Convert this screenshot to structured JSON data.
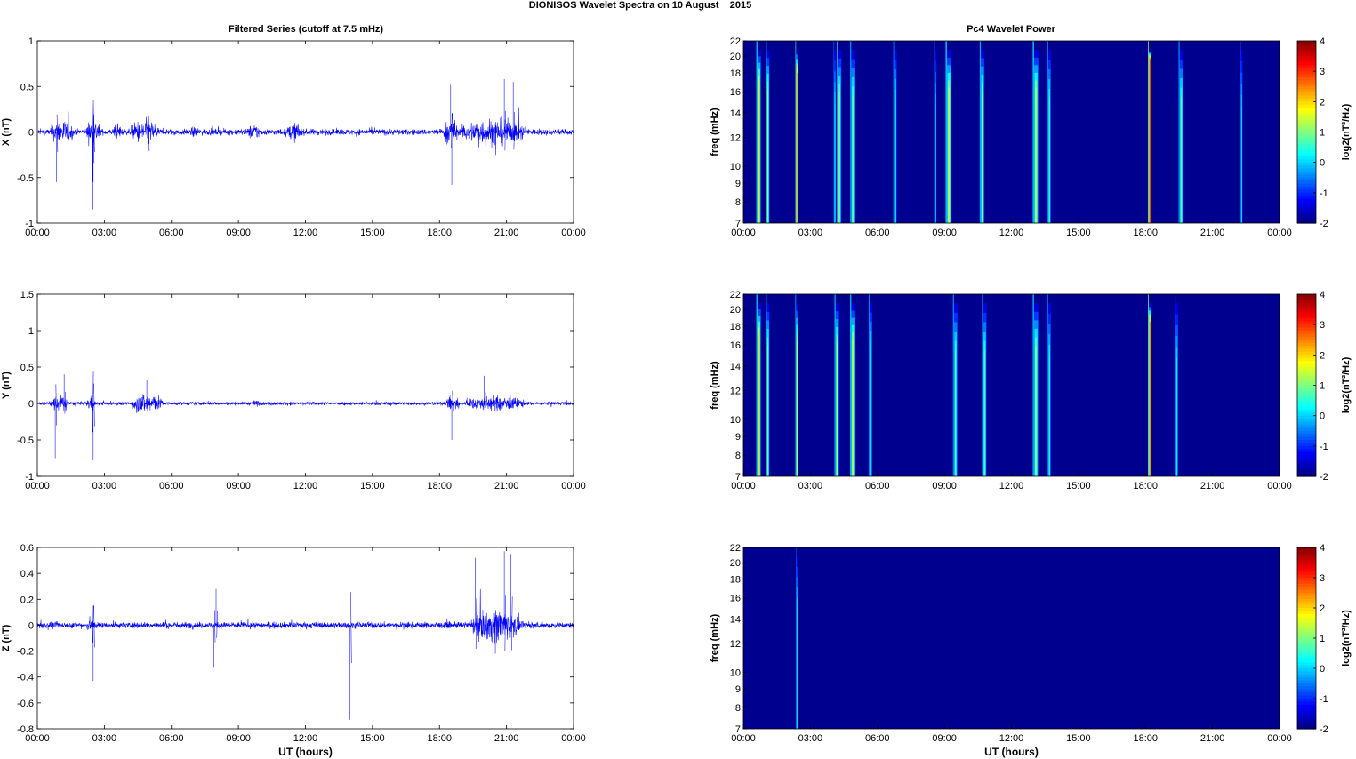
{
  "figure_title": "DIONISOS Wavelet Spectra on 10 August    2015",
  "left_column_title": "Filtered Series (cutoff at 7.5 mHz)",
  "right_column_title": "Pc4 Wavelet Power",
  "x_axis_label": "UT (hours)",
  "colors": {
    "trace": "#0000ff",
    "background": "#ffffff",
    "spectrogram_floor": "#00008f"
  },
  "chart_data": [
    {
      "type": "line",
      "title": "Filtered Series (cutoff at 7.5 mHz)",
      "ylabel": "X (nT)",
      "xlabel": "",
      "x_ticks": [
        "00:00",
        "03:00",
        "06:00",
        "09:00",
        "12:00",
        "15:00",
        "18:00",
        "21:00",
        "00:00"
      ],
      "xlim_hours": [
        0,
        24
      ],
      "ylim": [
        -1,
        1
      ],
      "y_ticks": [
        "1",
        "0.5",
        "0",
        "-0.5",
        "-1"
      ],
      "y_tick_values": [
        1,
        0.5,
        0,
        -0.5,
        -1
      ],
      "series": [
        {
          "baseline_amplitude_nT": 0.07,
          "activity_hours": [
            [
              0.6,
              1.6,
              0.28
            ],
            [
              2.2,
              2.8,
              0.3
            ],
            [
              3.4,
              3.8,
              0.18
            ],
            [
              4.2,
              5.4,
              0.3
            ],
            [
              6.8,
              7.3,
              0.12
            ],
            [
              9.4,
              10.0,
              0.18
            ],
            [
              11.2,
              11.8,
              0.22
            ],
            [
              18.2,
              18.8,
              0.32
            ],
            [
              19.0,
              21.8,
              0.32
            ]
          ],
          "spikes": [
            [
              2.45,
              0.88
            ],
            [
              2.48,
              -0.85
            ],
            [
              2.5,
              -0.55
            ],
            [
              0.85,
              -0.55
            ],
            [
              4.95,
              -0.52
            ],
            [
              18.5,
              0.52
            ],
            [
              18.55,
              -0.58
            ],
            [
              20.9,
              0.58
            ],
            [
              21.3,
              0.55
            ]
          ]
        }
      ]
    },
    {
      "type": "line",
      "title": "",
      "ylabel": "Y (nT)",
      "xlabel": "",
      "x_ticks": [
        "00:00",
        "03:00",
        "06:00",
        "09:00",
        "12:00",
        "15:00",
        "18:00",
        "21:00",
        "00:00"
      ],
      "xlim_hours": [
        0,
        24
      ],
      "ylim": [
        -1,
        1.5
      ],
      "y_ticks": [
        "1.5",
        "1",
        "0.5",
        "0",
        "-0.5",
        "-1"
      ],
      "y_tick_values": [
        1.5,
        1,
        0.5,
        0,
        -0.5,
        -1
      ],
      "series": [
        {
          "baseline_amplitude_nT": 0.05,
          "activity_hours": [
            [
              0.6,
              1.4,
              0.25
            ],
            [
              2.2,
              2.6,
              0.2
            ],
            [
              4.2,
              5.6,
              0.3
            ],
            [
              9.6,
              10.0,
              0.1
            ],
            [
              18.3,
              18.9,
              0.25
            ],
            [
              19.2,
              21.8,
              0.22
            ]
          ],
          "spikes": [
            [
              2.45,
              1.12
            ],
            [
              2.5,
              -0.78
            ],
            [
              0.8,
              -0.75
            ],
            [
              1.2,
              0.4
            ],
            [
              18.55,
              -0.5
            ],
            [
              4.9,
              0.32
            ],
            [
              20.0,
              0.38
            ]
          ]
        }
      ]
    },
    {
      "type": "line",
      "title": "",
      "ylabel": "Z (nT)",
      "xlabel": "UT (hours)",
      "x_ticks": [
        "00:00",
        "03:00",
        "06:00",
        "09:00",
        "12:00",
        "15:00",
        "18:00",
        "21:00",
        "00:00"
      ],
      "xlim_hours": [
        0,
        24
      ],
      "ylim": [
        -0.8,
        0.6
      ],
      "y_ticks": [
        "0.6",
        "0.4",
        "0.2",
        "0",
        "-0.2",
        "-0.4",
        "-0.6",
        "-0.8"
      ],
      "y_tick_values": [
        0.6,
        0.4,
        0.2,
        0,
        -0.2,
        -0.4,
        -0.6,
        -0.8
      ],
      "series": [
        {
          "baseline_amplitude_nT": 0.05,
          "activity_hours": [
            [
              2.2,
              2.6,
              0.12
            ],
            [
              19.5,
              21.6,
              0.28
            ]
          ],
          "spikes": [
            [
              2.45,
              0.38
            ],
            [
              2.5,
              -0.43
            ],
            [
              7.9,
              -0.33
            ],
            [
              8.0,
              0.28
            ],
            [
              14.0,
              -0.73
            ],
            [
              20.9,
              0.57
            ],
            [
              21.2,
              0.55
            ],
            [
              19.6,
              0.52
            ],
            [
              20.5,
              -0.22
            ]
          ]
        }
      ]
    },
    {
      "type": "heatmap",
      "title": "Pc4 Wavelet Power",
      "ylabel": "freq (mHz)",
      "xlabel": "",
      "x_ticks": [
        "00:00",
        "03:00",
        "06:00",
        "09:00",
        "12:00",
        "15:00",
        "18:00",
        "21:00",
        "00:00"
      ],
      "xlim_hours": [
        0,
        24
      ],
      "ylim_mHz": [
        7,
        22
      ],
      "y_ticks": [
        "22",
        "20",
        "18",
        "16",
        "14",
        "12",
        "10",
        "9",
        "8",
        "7"
      ],
      "y_tick_values": [
        22,
        20,
        18,
        16,
        14,
        12,
        10,
        9,
        8,
        7
      ],
      "y_scale": "log",
      "colorbar_label": "log2(nT²/Hz)",
      "colorbar_ticks": [
        "4",
        "3",
        "2",
        "1",
        "0",
        "-1",
        "-2"
      ],
      "colorbar_range": [
        -2,
        4
      ],
      "colormap": "jet",
      "features": [
        [
          0.7,
          1.9,
          0.2
        ],
        [
          1.1,
          1.4,
          0.15
        ],
        [
          2.4,
          2.5,
          0.12
        ],
        [
          4.3,
          1.2,
          0.2
        ],
        [
          4.9,
          1.0,
          0.2
        ],
        [
          6.8,
          0.8,
          0.15
        ],
        [
          9.2,
          1.5,
          0.25
        ],
        [
          10.7,
          1.3,
          0.2
        ],
        [
          13.1,
          1.5,
          0.25
        ],
        [
          13.7,
          0.8,
          0.15
        ],
        [
          18.2,
          3.4,
          0.15
        ],
        [
          19.6,
          0.9,
          0.2
        ],
        [
          22.3,
          0.3,
          0.1
        ],
        [
          4.1,
          0.5,
          0.1
        ],
        [
          8.6,
          0.4,
          0.1
        ]
      ]
    },
    {
      "type": "heatmap",
      "title": "",
      "ylabel": "freq (mHz)",
      "xlabel": "",
      "x_ticks": [
        "00:00",
        "03:00",
        "06:00",
        "09:00",
        "12:00",
        "15:00",
        "18:00",
        "21:00",
        "00:00"
      ],
      "xlim_hours": [
        0,
        24
      ],
      "ylim_mHz": [
        7,
        22
      ],
      "y_ticks": [
        "22",
        "20",
        "18",
        "16",
        "14",
        "12",
        "10",
        "9",
        "8",
        "7"
      ],
      "y_tick_values": [
        22,
        20,
        18,
        16,
        14,
        12,
        10,
        9,
        8,
        7
      ],
      "y_scale": "log",
      "colorbar_label": "log2(nT²/Hz)",
      "colorbar_ticks": [
        "4",
        "3",
        "2",
        "1",
        "0",
        "-1",
        "-2"
      ],
      "colorbar_range": [
        -2,
        4
      ],
      "colormap": "jet",
      "features": [
        [
          0.7,
          2.0,
          0.2
        ],
        [
          1.1,
          1.2,
          0.15
        ],
        [
          2.4,
          1.6,
          0.12
        ],
        [
          4.2,
          1.4,
          0.2
        ],
        [
          4.9,
          1.6,
          0.2
        ],
        [
          5.7,
          1.0,
          0.15
        ],
        [
          9.5,
          0.9,
          0.2
        ],
        [
          10.8,
          0.9,
          0.2
        ],
        [
          13.1,
          1.2,
          0.25
        ],
        [
          13.7,
          0.6,
          0.15
        ],
        [
          18.2,
          2.8,
          0.15
        ],
        [
          19.4,
          0.4,
          0.15
        ]
      ]
    },
    {
      "type": "heatmap",
      "title": "",
      "ylabel": "freq (mHz)",
      "xlabel": "UT (hours)",
      "x_ticks": [
        "00:00",
        "03:00",
        "06:00",
        "09:00",
        "12:00",
        "15:00",
        "18:00",
        "21:00",
        "00:00"
      ],
      "xlim_hours": [
        0,
        24
      ],
      "ylim_mHz": [
        7,
        22
      ],
      "y_ticks": [
        "22",
        "20",
        "18",
        "16",
        "14",
        "12",
        "10",
        "9",
        "8",
        "7"
      ],
      "y_tick_values": [
        22,
        20,
        18,
        16,
        14,
        12,
        10,
        9,
        8,
        7
      ],
      "y_scale": "log",
      "colorbar_label": "log2(nT²/Hz)",
      "colorbar_ticks": [
        "4",
        "3",
        "2",
        "1",
        "0",
        "-1",
        "-2"
      ],
      "colorbar_range": [
        -2,
        4
      ],
      "colormap": "jet",
      "features": [
        [
          2.4,
          0.6,
          0.08
        ]
      ]
    }
  ]
}
